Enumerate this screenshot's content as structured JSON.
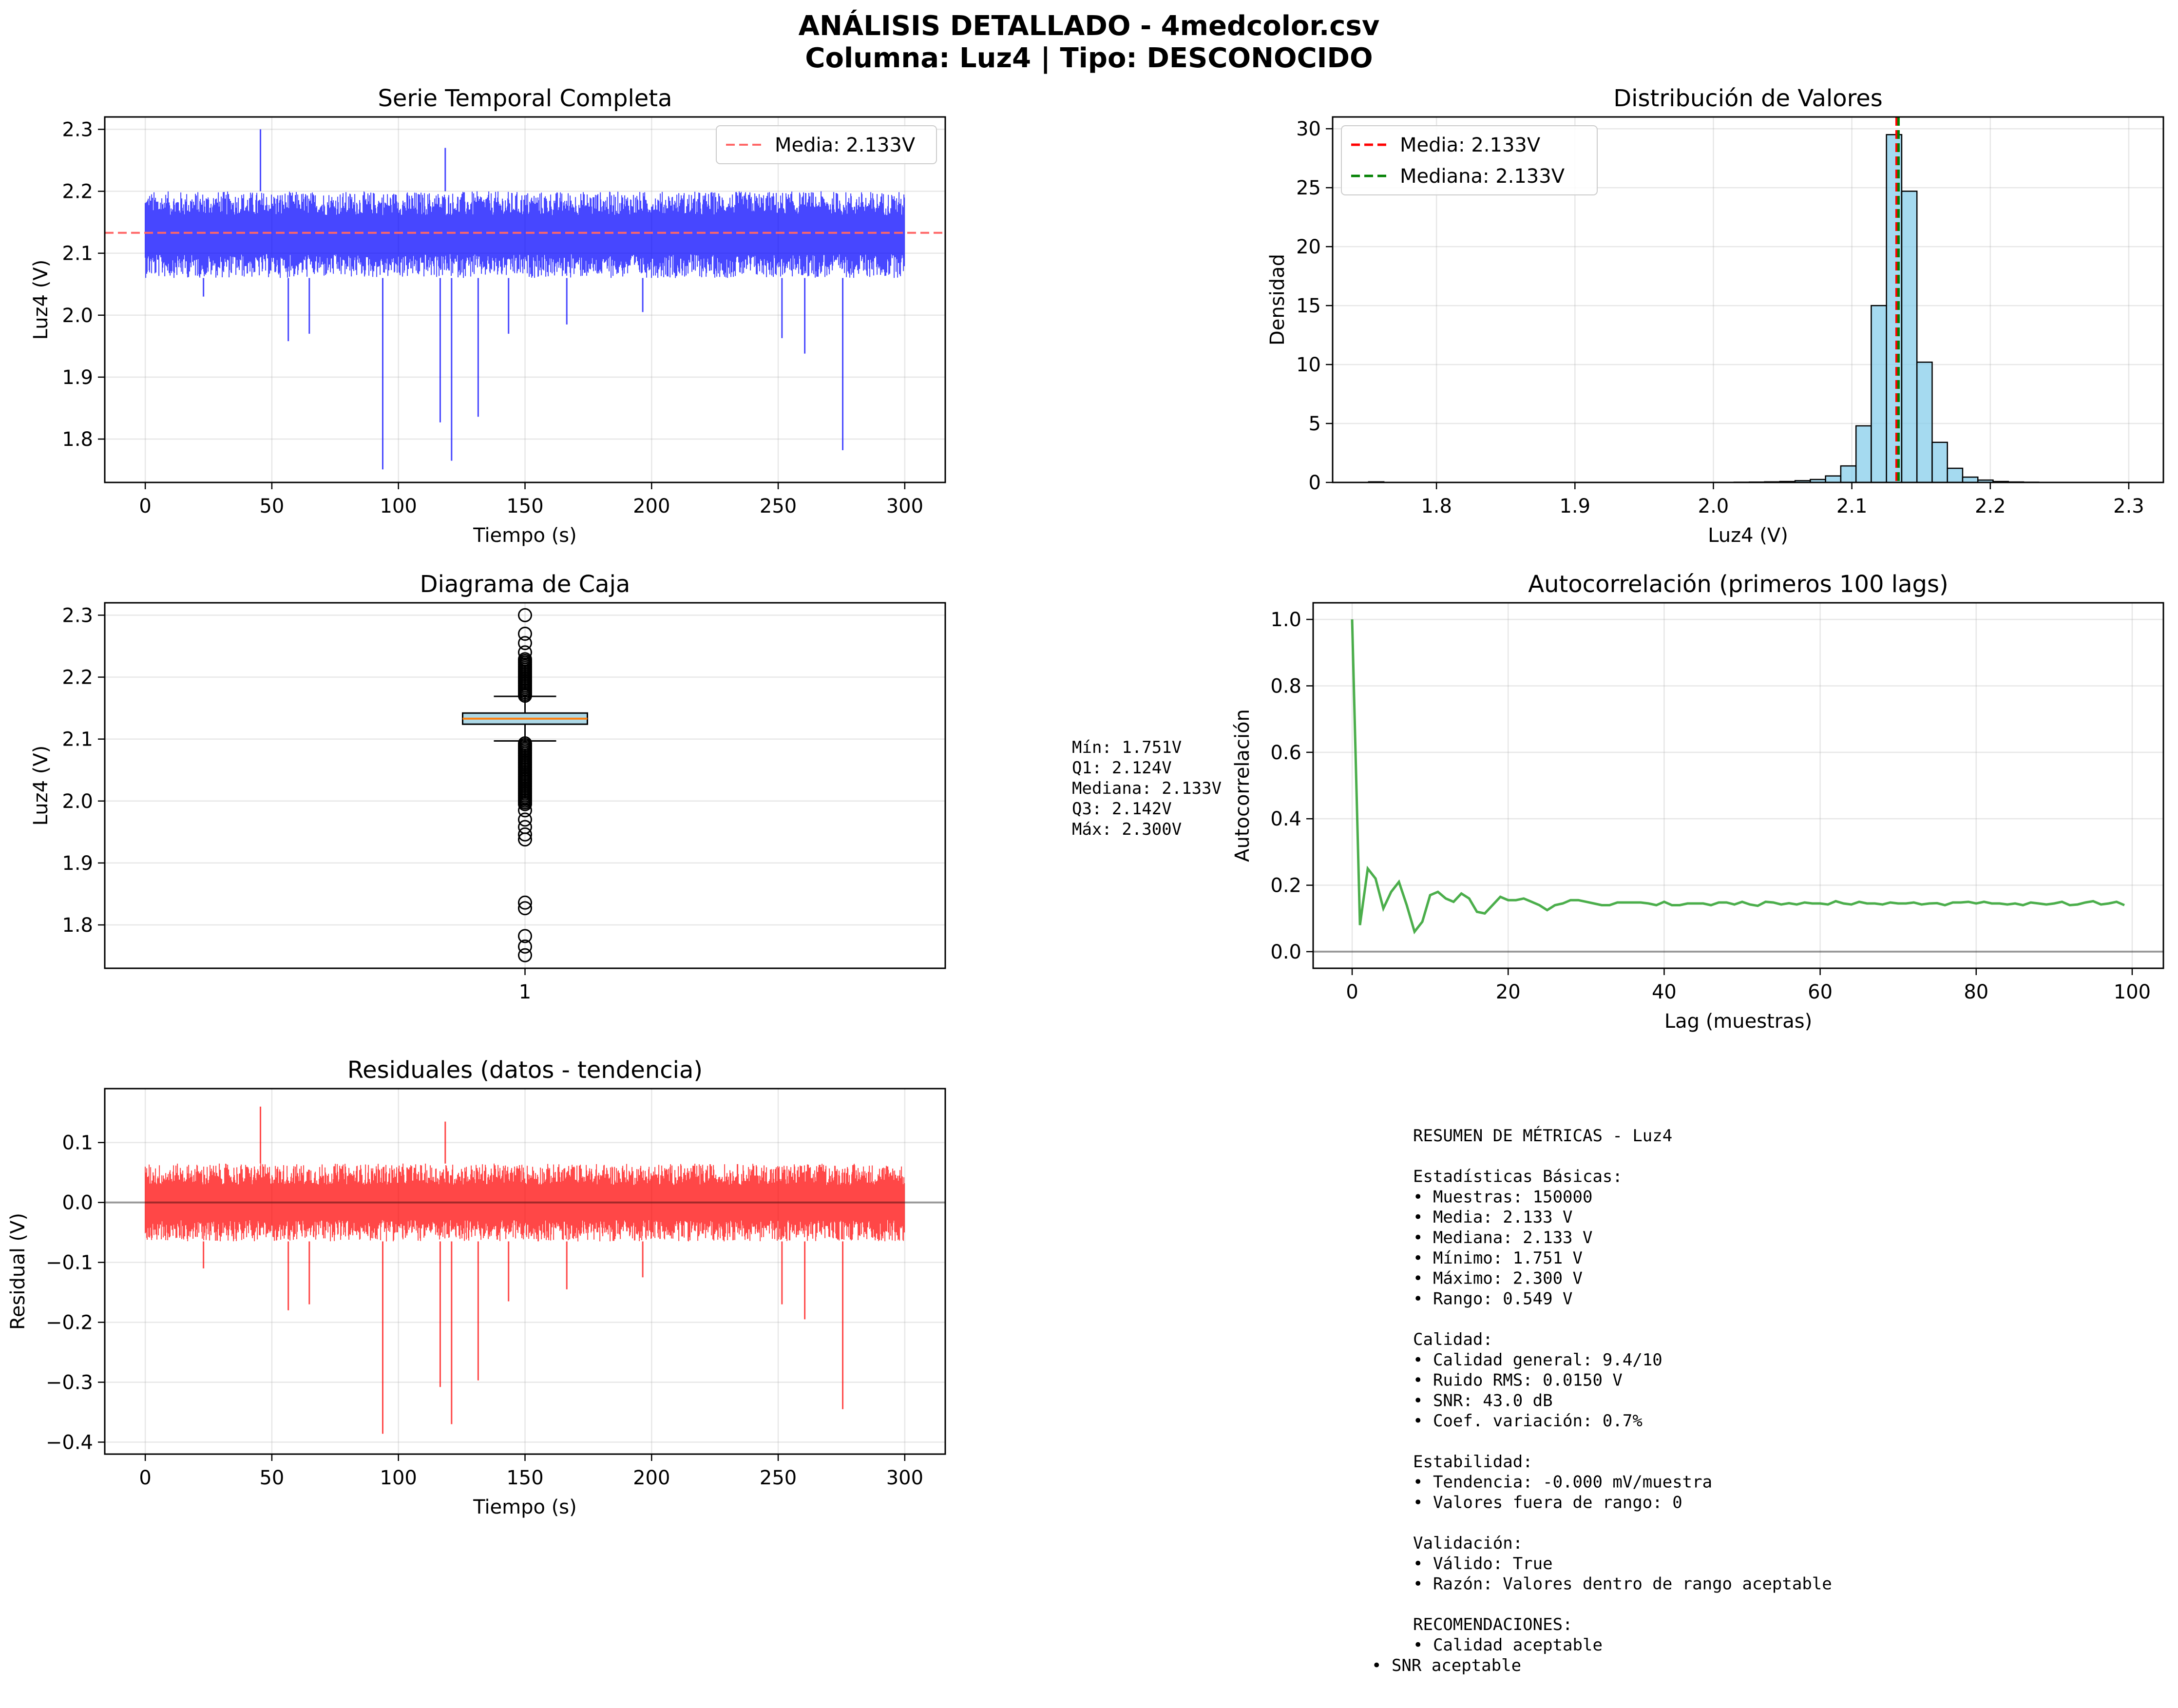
{
  "figure": {
    "title_line1": "ANÁLISIS DETALLADO - 4medcolor.csv",
    "title_line2": "Columna: Luz4 | Tipo: DESCONOCIDO"
  },
  "chart_data": [
    {
      "id": "timeseries",
      "type": "line",
      "title": "Serie Temporal Completa",
      "xlabel": "Tiempo (s)",
      "ylabel": "Luz4 (V)",
      "xlim": [
        -16,
        316
      ],
      "ylim": [
        1.73,
        2.32
      ],
      "xticks": [
        0,
        50,
        100,
        150,
        200,
        250,
        300
      ],
      "yticks": [
        1.8,
        1.9,
        2.0,
        2.1,
        2.2,
        2.3
      ],
      "ytick_labels": [
        "1.8",
        "1.9",
        "2.0",
        "2.1",
        "2.2",
        "2.3"
      ],
      "series": [
        {
          "name": "Luz4",
          "color": "#0000ff",
          "band": [
            2.06,
            2.2
          ],
          "x_range": [
            0,
            300
          ],
          "samples": 150000
        }
      ],
      "spikes": [
        {
          "x": 45.5,
          "y": 2.3
        },
        {
          "x": 93.8,
          "y": 1.751
        },
        {
          "x": 116.5,
          "y": 1.827
        },
        {
          "x": 121.0,
          "y": 1.765
        },
        {
          "x": 131.5,
          "y": 1.836
        },
        {
          "x": 56.5,
          "y": 1.958
        },
        {
          "x": 64.8,
          "y": 1.97
        },
        {
          "x": 118.5,
          "y": 2.27
        },
        {
          "x": 251.5,
          "y": 1.963
        },
        {
          "x": 260.5,
          "y": 1.938
        },
        {
          "x": 275.5,
          "y": 1.782
        },
        {
          "x": 143.5,
          "y": 1.97
        },
        {
          "x": 166.5,
          "y": 1.985
        },
        {
          "x": 196.5,
          "y": 2.005
        },
        {
          "x": 23.0,
          "y": 2.03
        }
      ],
      "mean_line": {
        "label": "Media: 2.133V",
        "value": 2.133,
        "color": "#ff6666"
      },
      "legend_position": "upper right",
      "grid": true
    },
    {
      "id": "histogram",
      "type": "bar",
      "title": "Distribución de Valores",
      "xlabel": "Luz4 (V)",
      "ylabel": "Densidad",
      "xlim": [
        1.725,
        2.325
      ],
      "ylim": [
        0,
        31
      ],
      "xticks": [
        1.8,
        1.9,
        2.0,
        2.1,
        2.2,
        2.3
      ],
      "xtick_labels": [
        "1.8",
        "1.9",
        "2.0",
        "2.1",
        "2.2",
        "2.3"
      ],
      "yticks": [
        0,
        5,
        10,
        15,
        20,
        25,
        30
      ],
      "bin_width": 0.011,
      "bins_start": 1.751,
      "densities": [
        0.05,
        0.01,
        0,
        0,
        0,
        0,
        0,
        0,
        0,
        0,
        0,
        0,
        0,
        0,
        0,
        0,
        0,
        0,
        0,
        0,
        0,
        0,
        0.01,
        0.01,
        0.02,
        0.03,
        0.05,
        0.08,
        0.15,
        0.25,
        0.55,
        1.4,
        4.8,
        15.0,
        29.5,
        24.7,
        10.2,
        3.4,
        1.2,
        0.45,
        0.2,
        0.08,
        0.04,
        0.02,
        0.01,
        0.01,
        0.005,
        0.005,
        0.004,
        0.003
      ],
      "bar_color": "#87ceeb",
      "lines": [
        {
          "label": "Media: 2.133V",
          "value": 2.133,
          "color": "#ff0000"
        },
        {
          "label": "Mediana: 2.133V",
          "value": 2.133,
          "color": "#008000"
        }
      ],
      "legend_position": "upper left",
      "grid": true
    },
    {
      "id": "boxplot",
      "type": "box",
      "title": "Diagrama de Caja",
      "ylabel": "Luz4 (V)",
      "xtick_labels": [
        "1"
      ],
      "ylim": [
        1.73,
        2.32
      ],
      "yticks": [
        1.8,
        1.9,
        2.0,
        2.1,
        2.2,
        2.3
      ],
      "ytick_labels": [
        "1.8",
        "1.9",
        "2.0",
        "2.1",
        "2.2",
        "2.3"
      ],
      "q1": 2.124,
      "median": 2.133,
      "q3": 2.142,
      "whisker_low": 2.097,
      "whisker_high": 2.169,
      "outliers_sparse": [
        1.751,
        1.765,
        1.782,
        1.827,
        1.836,
        1.938,
        1.946,
        1.958,
        1.97,
        1.985,
        2.24,
        2.255,
        2.27,
        2.3
      ],
      "outlier_band_low": [
        1.995,
        2.095
      ],
      "outlier_band_high": [
        2.17,
        2.23
      ],
      "grid": true
    },
    {
      "id": "autocorr",
      "type": "line",
      "title": "Autocorrelación (primeros 100 lags)",
      "xlabel": "Lag (muestras)",
      "ylabel": "Autocorrelación",
      "xlim": [
        -5,
        104
      ],
      "ylim": [
        -0.05,
        1.05
      ],
      "xticks": [
        0,
        20,
        40,
        60,
        80,
        100
      ],
      "yticks": [
        0.0,
        0.2,
        0.4,
        0.6,
        0.8,
        1.0
      ],
      "ytick_labels": [
        "0.0",
        "0.2",
        "0.4",
        "0.6",
        "0.8",
        "1.0"
      ],
      "series": [
        {
          "color": "#2ca02c",
          "values": [
            1.0,
            0.08,
            0.25,
            0.22,
            0.13,
            0.18,
            0.21,
            0.14,
            0.06,
            0.09,
            0.17,
            0.18,
            0.16,
            0.15,
            0.175,
            0.16,
            0.12,
            0.115,
            0.14,
            0.165,
            0.155,
            0.155,
            0.16,
            0.15,
            0.14,
            0.125,
            0.14,
            0.145,
            0.155,
            0.155,
            0.15,
            0.145,
            0.14,
            0.14,
            0.148,
            0.148,
            0.148,
            0.148,
            0.145,
            0.14,
            0.15,
            0.14,
            0.14,
            0.145,
            0.145,
            0.145,
            0.14,
            0.148,
            0.148,
            0.142,
            0.15,
            0.142,
            0.138,
            0.15,
            0.148,
            0.142,
            0.146,
            0.142,
            0.148,
            0.145,
            0.145,
            0.142,
            0.152,
            0.145,
            0.142,
            0.15,
            0.145,
            0.145,
            0.142,
            0.148,
            0.145,
            0.145,
            0.148,
            0.142,
            0.145,
            0.146,
            0.14,
            0.148,
            0.148,
            0.15,
            0.145,
            0.15,
            0.145,
            0.145,
            0.142,
            0.145,
            0.14,
            0.148,
            0.145,
            0.142,
            0.145,
            0.15,
            0.14,
            0.142,
            0.148,
            0.152,
            0.142,
            0.145,
            0.15,
            0.14
          ]
        }
      ],
      "hline": 0,
      "grid": true
    },
    {
      "id": "residuals",
      "type": "line",
      "title": "Residuales (datos - tendencia)",
      "xlabel": "Tiempo (s)",
      "ylabel": "Residual (V)",
      "xlim": [
        -16,
        316
      ],
      "ylim": [
        -0.42,
        0.19
      ],
      "xticks": [
        0,
        50,
        100,
        150,
        200,
        250,
        300
      ],
      "yticks": [
        -0.4,
        -0.3,
        -0.2,
        -0.1,
        0.0,
        0.1
      ],
      "ytick_labels": [
        "−0.4",
        "−0.3",
        "−0.2",
        "−0.1",
        "0.0",
        "0.1"
      ],
      "series": [
        {
          "name": "Residual",
          "color": "#ff0000",
          "band": [
            -0.065,
            0.065
          ],
          "x_range": [
            0,
            300
          ],
          "samples": 150000
        }
      ],
      "spikes": [
        {
          "x": 45.5,
          "y": 0.16
        },
        {
          "x": 93.8,
          "y": -0.386
        },
        {
          "x": 116.5,
          "y": -0.308
        },
        {
          "x": 121.0,
          "y": -0.37
        },
        {
          "x": 131.5,
          "y": -0.297
        },
        {
          "x": 56.5,
          "y": -0.18
        },
        {
          "x": 64.8,
          "y": -0.17
        },
        {
          "x": 118.5,
          "y": 0.135
        },
        {
          "x": 251.5,
          "y": -0.17
        },
        {
          "x": 260.5,
          "y": -0.195
        },
        {
          "x": 275.5,
          "y": -0.345
        },
        {
          "x": 143.5,
          "y": -0.165
        },
        {
          "x": 166.5,
          "y": -0.145
        },
        {
          "x": 196.5,
          "y": -0.125
        },
        {
          "x": 23.0,
          "y": -0.11
        }
      ],
      "hline": 0,
      "grid": true
    }
  ],
  "box_stats": {
    "lines": [
      "Mín: 1.751V",
      "Q1: 2.124V",
      "Mediana: 2.133V",
      "Q3: 2.142V",
      "Máx: 2.300V"
    ]
  },
  "summary": {
    "lines": [
      "RESUMEN DE MÉTRICAS - Luz4",
      "",
      "Estadísticas Básicas:",
      "• Muestras: 150000",
      "• Media: 2.133 V",
      "• Mediana: 2.133 V",
      "• Mínimo: 1.751 V",
      "• Máximo: 2.300 V",
      "• Rango: 0.549 V",
      "",
      "Calidad:",
      "• Calidad general: 9.4/10",
      "• Ruido RMS: 0.0150 V",
      "• SNR: 43.0 dB",
      "• Coef. variación: 0.7%",
      "",
      "Estabilidad:",
      "• Tendencia: -0.000 mV/muestra",
      "• Valores fuera de rango: 0",
      "",
      "Validación:",
      "• Válido: True",
      "• Razón: Valores dentro de rango aceptable",
      "",
      "RECOMENDACIONES:",
      "• Calidad aceptable"
    ],
    "last_line": "• SNR aceptable"
  }
}
